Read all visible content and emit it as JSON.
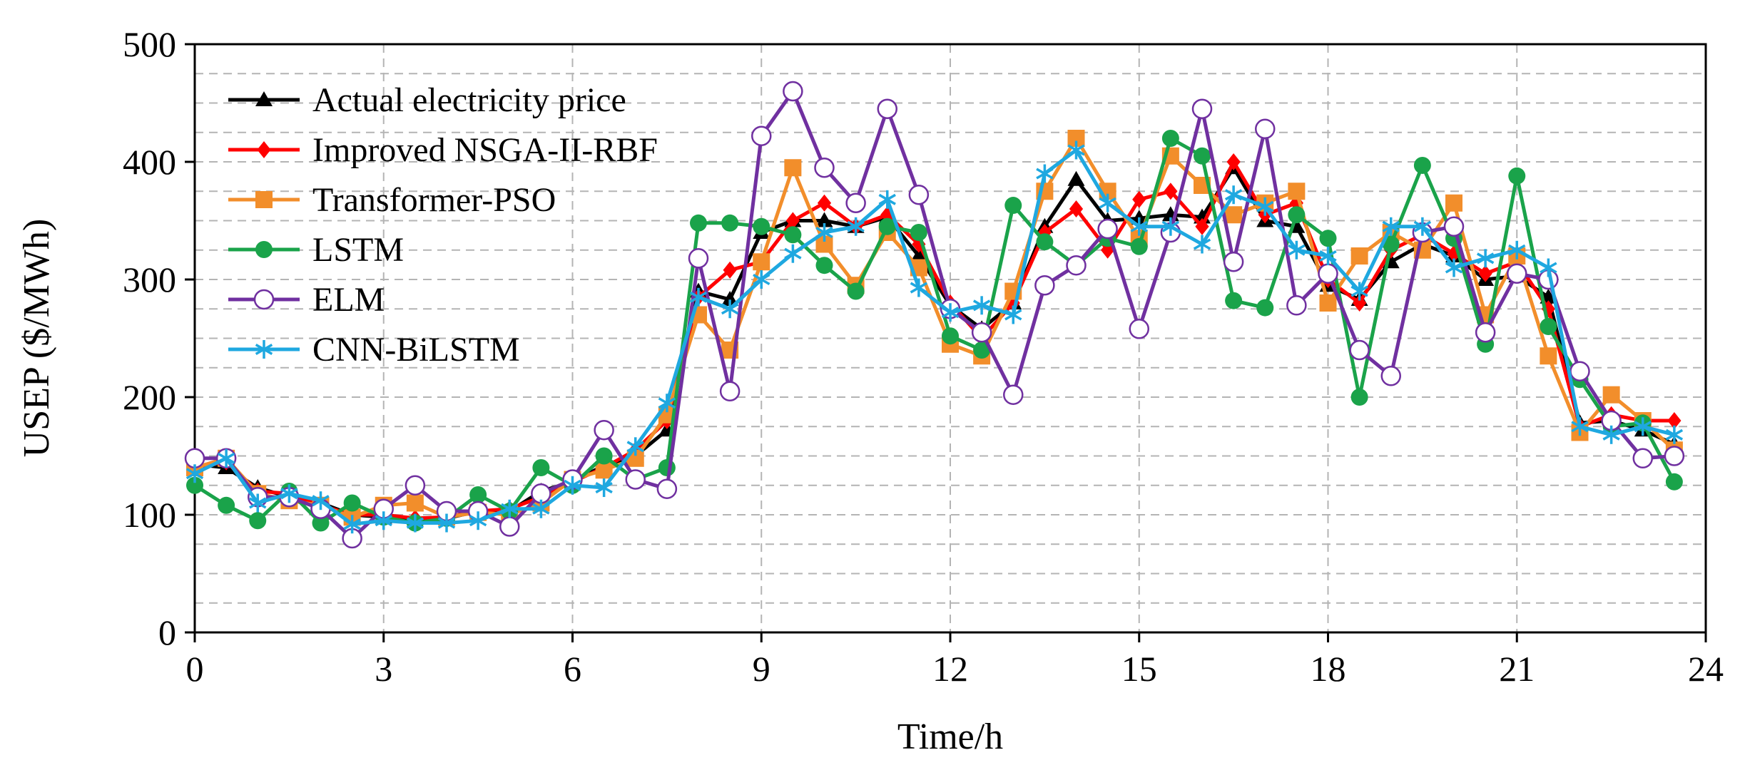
{
  "chart_data": {
    "type": "line",
    "title": "",
    "xlabel": "Time/h",
    "ylabel": "USEP ($/MWh)",
    "xlim": [
      0,
      24
    ],
    "ylim": [
      0,
      500
    ],
    "xticks": [
      0,
      3,
      6,
      9,
      12,
      15,
      18,
      21,
      24
    ],
    "yticks": [
      0,
      100,
      200,
      300,
      400,
      500
    ],
    "grid": "dashed",
    "legend_position": "top-left",
    "x": [
      0,
      0.5,
      1,
      1.5,
      2,
      2.5,
      3,
      3.5,
      4,
      4.5,
      5,
      5.5,
      6,
      6.5,
      7,
      7.5,
      8,
      8.5,
      9,
      9.5,
      10,
      10.5,
      11,
      11.5,
      12,
      12.5,
      13,
      13.5,
      14,
      14.5,
      15,
      15.5,
      16,
      16.5,
      17,
      17.5,
      18,
      18.5,
      19,
      19.5,
      20,
      20.5,
      21,
      21.5,
      22,
      22.5,
      23,
      23.5
    ],
    "series": [
      {
        "name": "Actual electricity price",
        "color": "#000000",
        "marker": "triangle",
        "values": [
          143,
          140,
          123,
          115,
          110,
          100,
          98,
          97,
          97,
          103,
          103,
          120,
          128,
          142,
          150,
          172,
          290,
          283,
          340,
          350,
          350,
          345,
          353,
          320,
          278,
          258,
          280,
          345,
          385,
          350,
          352,
          355,
          353,
          395,
          350,
          345,
          295,
          283,
          315,
          330,
          320,
          300,
          303,
          285,
          178,
          180,
          172,
          160
        ]
      },
      {
        "name": "Improved NSGA-II-RBF",
        "color": "#ff0000",
        "marker": "diamond",
        "values": [
          140,
          145,
          120,
          118,
          108,
          100,
          100,
          97,
          98,
          103,
          105,
          115,
          128,
          140,
          155,
          180,
          285,
          308,
          315,
          350,
          365,
          345,
          355,
          330,
          280,
          250,
          280,
          340,
          360,
          325,
          368,
          375,
          345,
          400,
          355,
          365,
          300,
          280,
          325,
          338,
          322,
          305,
          315,
          275,
          175,
          185,
          180,
          180
        ]
      },
      {
        "name": "Transformer-PSO",
        "color": "#f28e2b",
        "marker": "square",
        "values": [
          140,
          148,
          118,
          112,
          108,
          98,
          108,
          110,
          98,
          102,
          100,
          110,
          130,
          138,
          148,
          185,
          270,
          240,
          315,
          395,
          330,
          295,
          340,
          310,
          245,
          235,
          290,
          375,
          420,
          375,
          335,
          405,
          380,
          355,
          365,
          375,
          280,
          320,
          340,
          325,
          365,
          270,
          320,
          235,
          170,
          202,
          180,
          155
        ]
      },
      {
        "name": "LSTM",
        "color": "#1aa34a",
        "marker": "circle",
        "values": [
          125,
          108,
          95,
          120,
          93,
          110,
          98,
          93,
          97,
          117,
          103,
          140,
          125,
          150,
          130,
          140,
          348,
          348,
          345,
          338,
          312,
          290,
          345,
          340,
          252,
          240,
          363,
          332,
          312,
          335,
          328,
          420,
          405,
          282,
          276,
          355,
          335,
          200,
          330,
          397,
          335,
          245,
          388,
          260,
          215,
          175,
          178,
          128
        ]
      },
      {
        "name": "ELM",
        "color": "#7030a0",
        "marker": "open-circle",
        "values": [
          148,
          148,
          115,
          115,
          105,
          80,
          105,
          125,
          103,
          103,
          90,
          118,
          130,
          172,
          130,
          122,
          318,
          205,
          422,
          460,
          395,
          365,
          445,
          372,
          275,
          255,
          202,
          295,
          312,
          343,
          258,
          340,
          445,
          315,
          428,
          278,
          305,
          240,
          218,
          340,
          345,
          255,
          305,
          300,
          222,
          180,
          148,
          150
        ]
      },
      {
        "name": "CNN-BiLSTM",
        "color": "#1fa8e0",
        "marker": "asterisk",
        "values": [
          135,
          148,
          110,
          118,
          112,
          92,
          95,
          93,
          93,
          95,
          105,
          105,
          125,
          123,
          158,
          195,
          285,
          275,
          300,
          322,
          340,
          345,
          368,
          293,
          272,
          278,
          270,
          390,
          410,
          365,
          345,
          345,
          330,
          372,
          362,
          325,
          320,
          290,
          345,
          345,
          310,
          318,
          325,
          310,
          175,
          168,
          175,
          168
        ]
      }
    ]
  }
}
